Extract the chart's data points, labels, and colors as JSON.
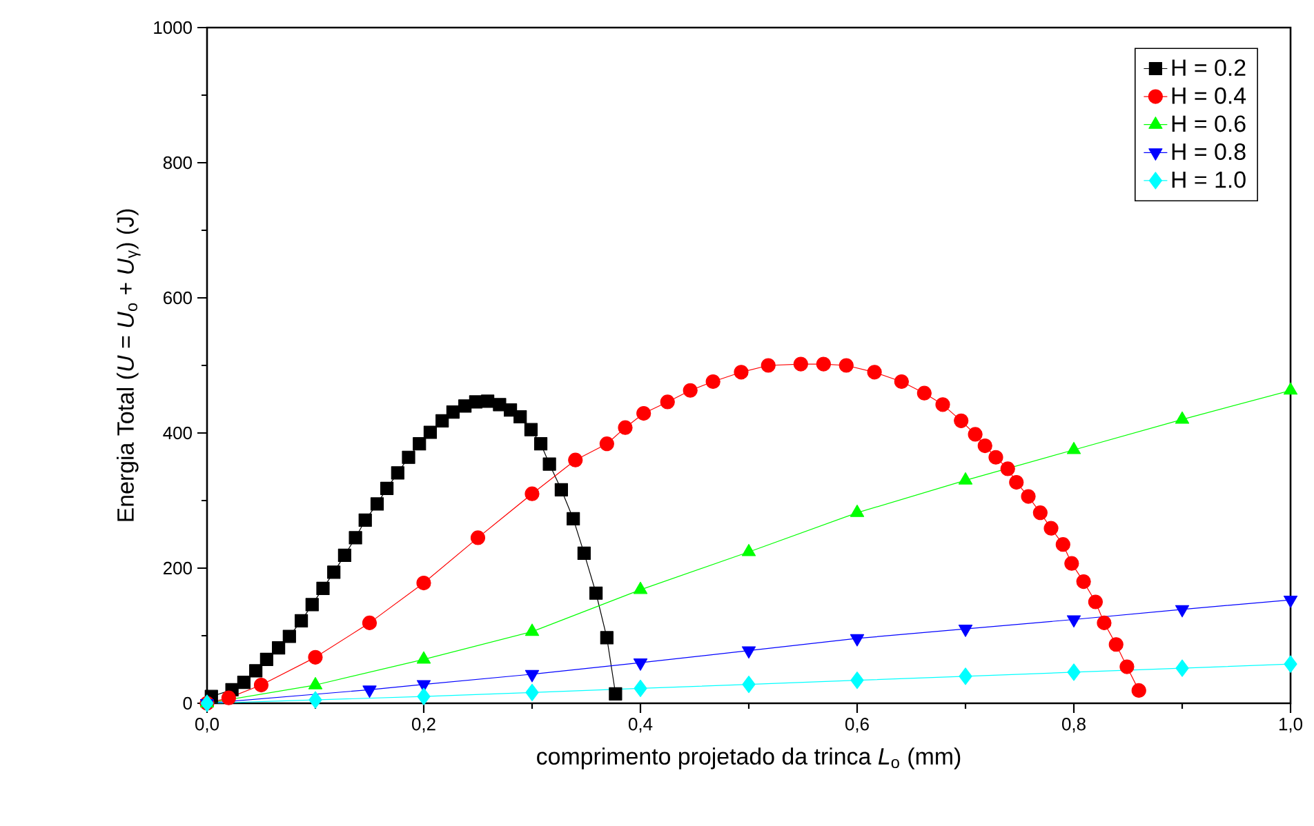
{
  "chart_data": {
    "type": "line",
    "xlabel": "comprimento projetado da trinca *L*$_{o}$ (mm)",
    "ylabel": "Energia Total (*U* = *U*$_{o}$ + *U*$_{γ}$) (J)",
    "xlim": [
      0,
      1.0
    ],
    "ylim": [
      0,
      1000
    ],
    "xticks": [
      {
        "value": 0,
        "label": "0,0"
      },
      {
        "value": 0.1,
        "label": null
      },
      {
        "value": 0.2,
        "label": "0,2"
      },
      {
        "value": 0.3,
        "label": null
      },
      {
        "value": 0.4,
        "label": "0,4"
      },
      {
        "value": 0.5,
        "label": null
      },
      {
        "value": 0.6,
        "label": "0,6"
      },
      {
        "value": 0.7,
        "label": null
      },
      {
        "value": 0.8,
        "label": "0,8"
      },
      {
        "value": 0.9,
        "label": null
      },
      {
        "value": 1.0,
        "label": "1,0"
      }
    ],
    "yticks": [
      0,
      {
        "value": 100,
        "label": null
      },
      200,
      {
        "value": 300,
        "label": null
      },
      400,
      {
        "value": 500,
        "label": null
      },
      600,
      {
        "value": 700,
        "label": null
      },
      800,
      {
        "value": 900,
        "label": null
      },
      1000
    ],
    "legend": "top right",
    "grid": false,
    "line_style": "solid",
    "series": [
      {
        "name": "H = 0.2",
        "color": "#000000",
        "marker": "square",
        "x": [
          0.004,
          0.023,
          0.034,
          0.045,
          0.055,
          0.066,
          0.076,
          0.087,
          0.097,
          0.107,
          0.117,
          0.127,
          0.137,
          0.146,
          0.157,
          0.166,
          0.176,
          0.186,
          0.196,
          0.206,
          0.217,
          0.227,
          0.238,
          0.248,
          0.259,
          0.27,
          0.28,
          0.289,
          0.299,
          0.308,
          0.316,
          0.327,
          0.338,
          0.348,
          0.359,
          0.369,
          0.377
        ],
        "values": [
          10,
          20,
          31,
          48,
          65,
          82,
          99,
          122,
          146,
          170,
          194,
          219,
          245,
          271,
          295,
          318,
          341,
          364,
          384,
          401,
          418,
          431,
          440,
          446,
          447,
          442,
          434,
          424,
          405,
          384,
          354,
          316,
          273,
          222,
          163,
          97,
          14
        ]
      },
      {
        "name": "H = 0.4",
        "color": "#ff0000",
        "marker": "circle",
        "x": [
          0,
          0.02,
          0.05,
          0.1,
          0.15,
          0.2,
          0.25,
          0.3,
          0.34,
          0.369,
          0.386,
          0.403,
          0.425,
          0.446,
          0.467,
          0.493,
          0.518,
          0.548,
          0.569,
          0.59,
          0.616,
          0.641,
          0.662,
          0.679,
          0.696,
          0.709,
          0.718,
          0.728,
          0.739,
          0.747,
          0.758,
          0.769,
          0.779,
          0.79,
          0.798,
          0.809,
          0.82,
          0.828,
          0.839,
          0.849,
          0.86
        ],
        "values": [
          0,
          8,
          27,
          68,
          119,
          178,
          245,
          310,
          360,
          384,
          408,
          429,
          446,
          463,
          476,
          490,
          500,
          502,
          502,
          500,
          490,
          476,
          459,
          442,
          418,
          398,
          381,
          364,
          347,
          327,
          306,
          282,
          259,
          235,
          207,
          180,
          150,
          119,
          87,
          54,
          19
        ]
      },
      {
        "name": "H = 0.6",
        "color": "#00ff00",
        "marker": "triangle",
        "x": [
          0,
          0.1,
          0.2,
          0.3,
          0.4,
          0.5,
          0.6,
          0.7,
          0.8,
          0.9,
          1.0
        ],
        "values": [
          0,
          27,
          65,
          106,
          168,
          224,
          282,
          330,
          375,
          420,
          463
        ]
      },
      {
        "name": "H = 0.8",
        "color": "#0000ff",
        "marker": "triangle down",
        "x": [
          0,
          0.15,
          0.2,
          0.3,
          0.4,
          0.5,
          0.6,
          0.7,
          0.8,
          0.9,
          1.0
        ],
        "values": [
          0,
          20,
          28,
          43,
          60,
          78,
          96,
          110,
          124,
          139,
          153
        ]
      },
      {
        "name": "H = 1.0",
        "color": "#00ffff",
        "marker": "diamond",
        "x": [
          0,
          0.1,
          0.2,
          0.3,
          0.4,
          0.5,
          0.6,
          0.7,
          0.8,
          0.9,
          1.0
        ],
        "values": [
          0,
          5,
          10,
          16,
          22,
          28,
          34,
          40,
          46,
          52,
          58
        ]
      }
    ]
  }
}
